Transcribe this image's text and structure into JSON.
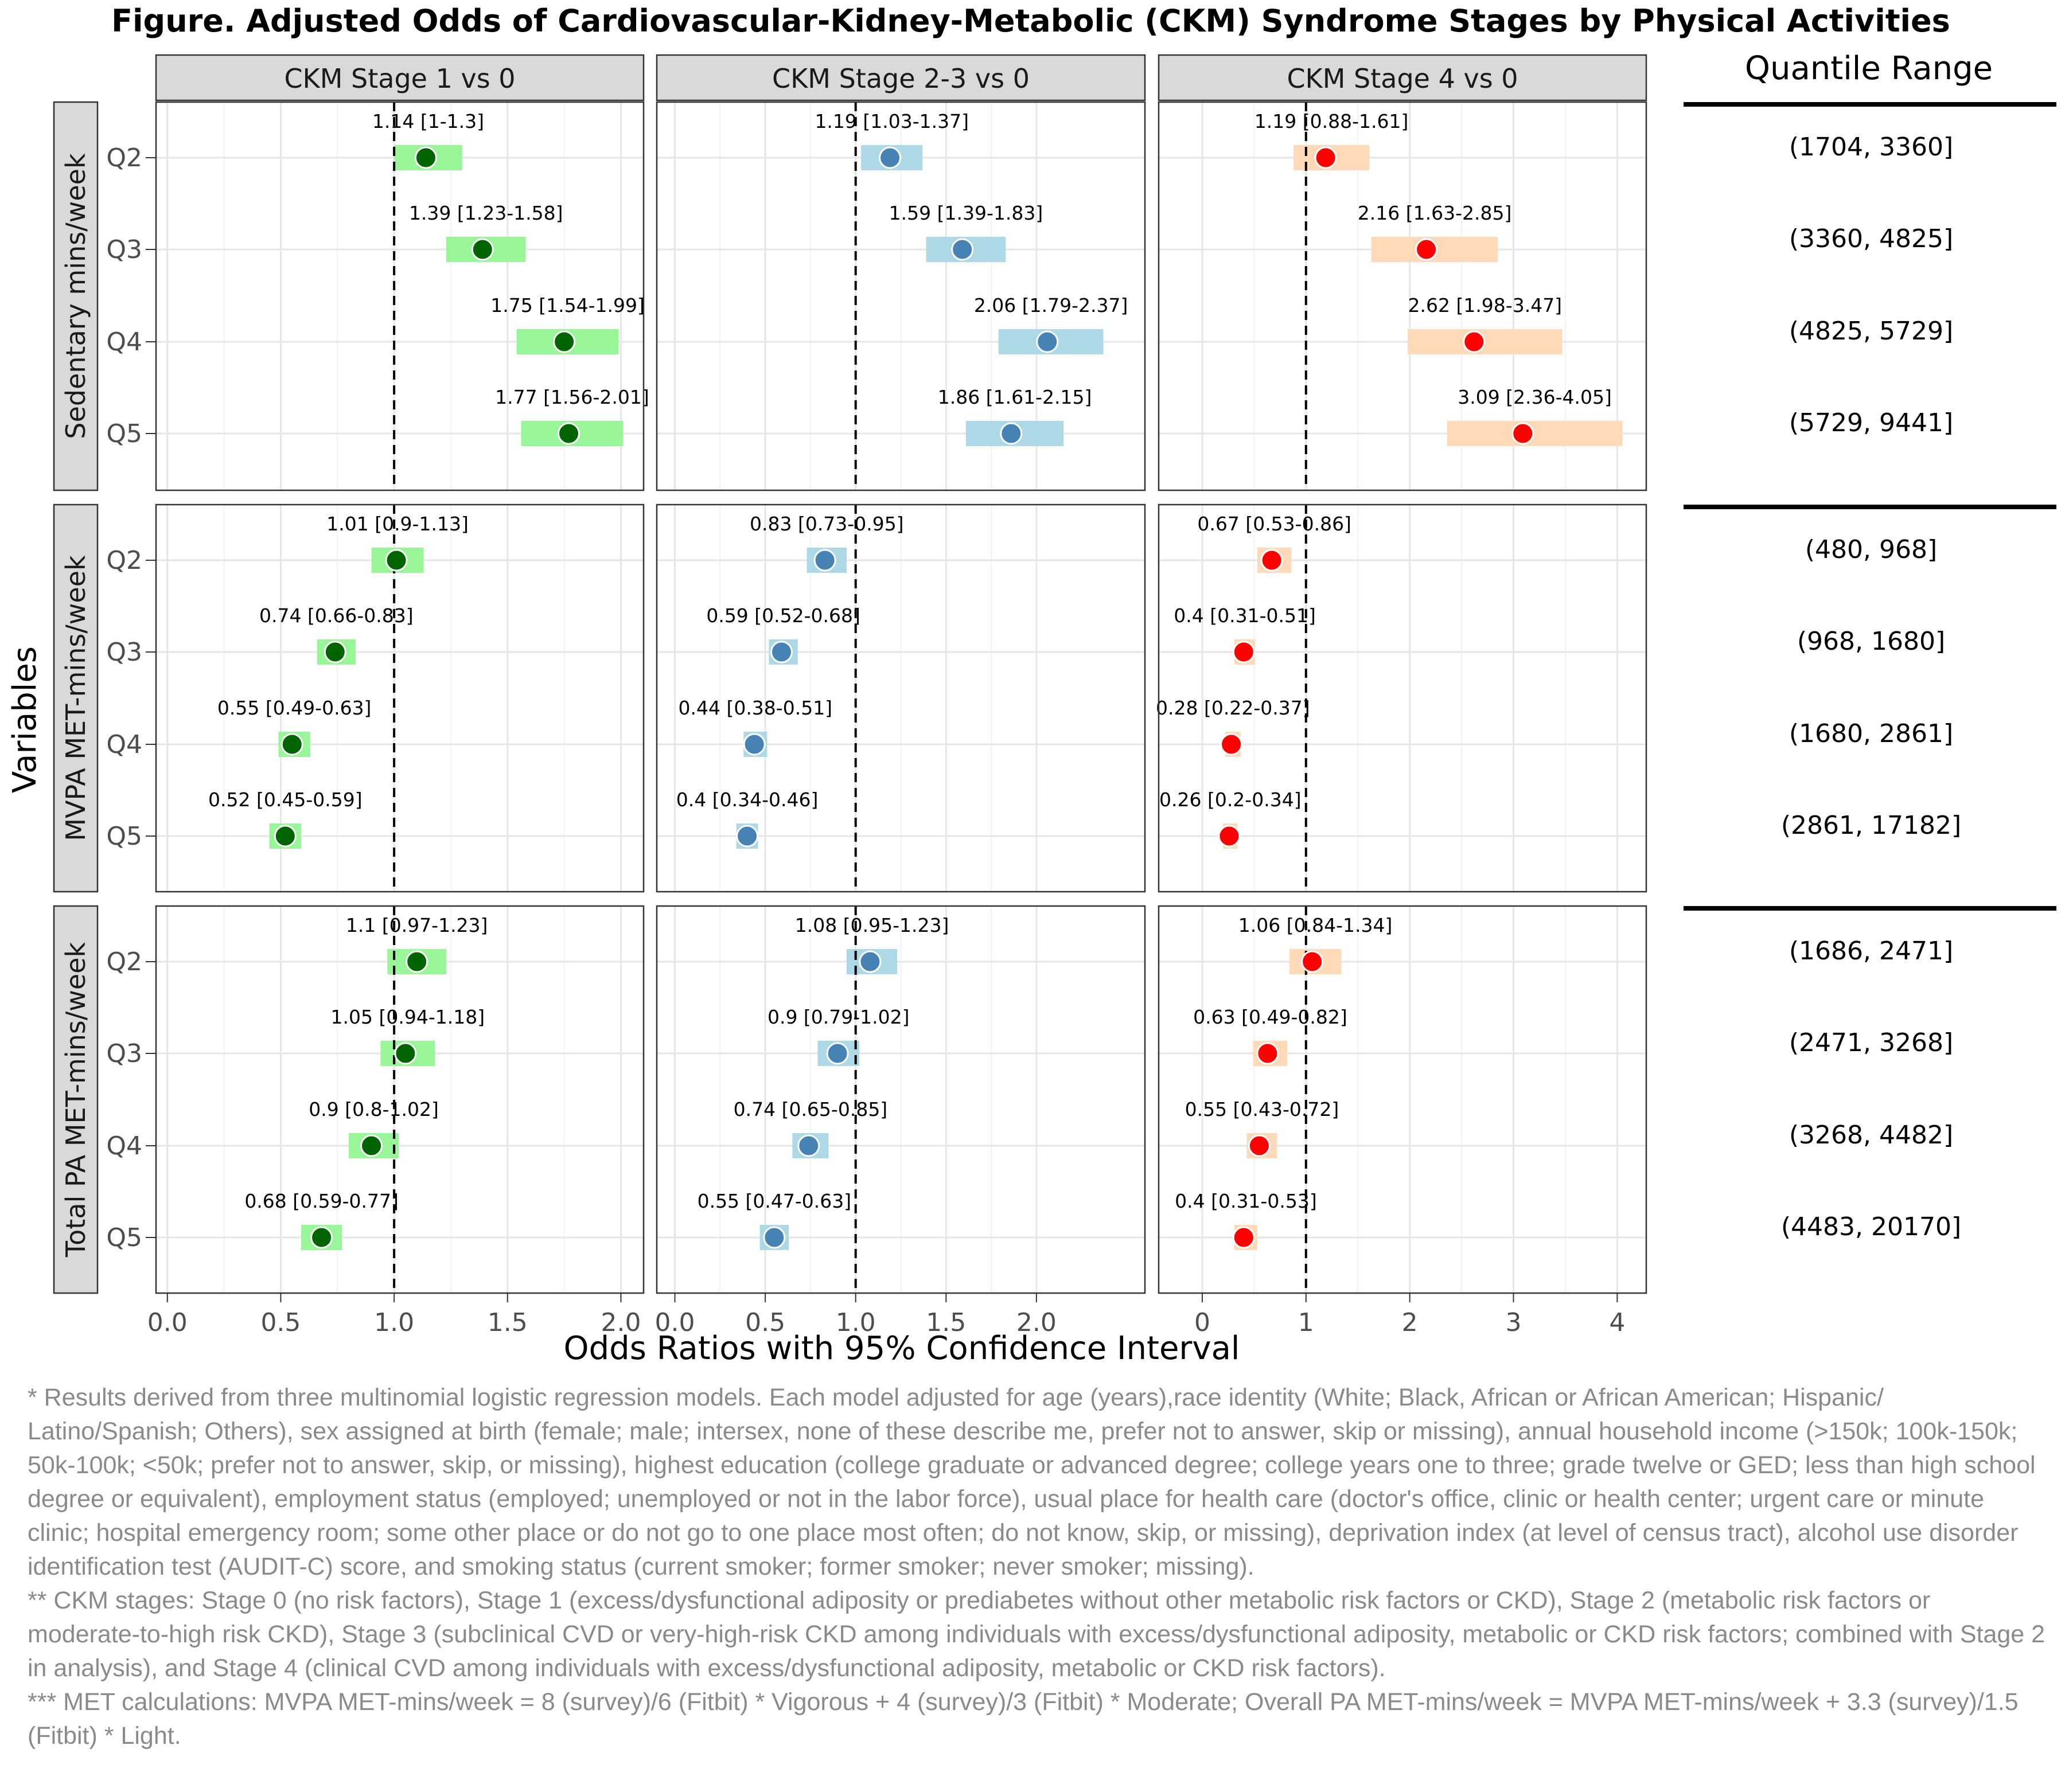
{
  "chart_data": {
    "type": "forest",
    "title": "Figure. Adjusted Odds of Cardiovascular-Kidney-Metabolic (CKM) Syndrome Stages by Physical Activities",
    "xlabel": "Odds Ratios with 95% Confidence Interval",
    "ylabel": "Variables",
    "reference_line": 1,
    "columns": [
      {
        "id": "s1",
        "label": "CKM Stage 1 vs 0",
        "xlim": [
          -0.05,
          2.1
        ],
        "ticks": [
          0,
          0.5,
          1,
          1.5,
          2
        ],
        "tick_labels": [
          "0.0",
          "0.5",
          "1.0",
          "1.5",
          "2.0"
        ],
        "point_color": "#006400",
        "ci_color": "#98f598"
      },
      {
        "id": "s23",
        "label": "CKM Stage 2-3 vs 0",
        "xlim": [
          -0.1,
          2.6
        ],
        "ticks": [
          0,
          0.5,
          1,
          1.5,
          2
        ],
        "tick_labels": [
          "0.0",
          "0.5",
          "1.0",
          "1.5",
          "2.0"
        ],
        "point_color": "#4682b4",
        "ci_color": "#add8e6"
      },
      {
        "id": "s4",
        "label": "CKM Stage 4 vs 0",
        "xlim": [
          -0.42,
          4.28
        ],
        "ticks": [
          0,
          1,
          2,
          3,
          4
        ],
        "tick_labels": [
          "0",
          "1",
          "2",
          "3",
          "4"
        ],
        "point_color": "#ff0000",
        "ci_color": "#ffdab9"
      }
    ],
    "categories": [
      "Q2",
      "Q3",
      "Q4",
      "Q5"
    ],
    "rows": [
      {
        "label": "Sedentary mins/week",
        "quantile_ranges": [
          "(1704, 3360]",
          "(3360, 4825]",
          "(4825, 5729]",
          "(5729, 9441]"
        ],
        "s1": [
          {
            "or": 1.14,
            "lo": 1.0,
            "hi": 1.3,
            "label": "1.14 [1-1.3]"
          },
          {
            "or": 1.39,
            "lo": 1.23,
            "hi": 1.58,
            "label": "1.39 [1.23-1.58]"
          },
          {
            "or": 1.75,
            "lo": 1.54,
            "hi": 1.99,
            "label": "1.75 [1.54-1.99]"
          },
          {
            "or": 1.77,
            "lo": 1.56,
            "hi": 2.01,
            "label": "1.77 [1.56-2.01]"
          }
        ],
        "s23": [
          {
            "or": 1.19,
            "lo": 1.03,
            "hi": 1.37,
            "label": "1.19 [1.03-1.37]"
          },
          {
            "or": 1.59,
            "lo": 1.39,
            "hi": 1.83,
            "label": "1.59 [1.39-1.83]"
          },
          {
            "or": 2.06,
            "lo": 1.79,
            "hi": 2.37,
            "label": "2.06 [1.79-2.37]"
          },
          {
            "or": 1.86,
            "lo": 1.61,
            "hi": 2.15,
            "label": "1.86 [1.61-2.15]"
          }
        ],
        "s4": [
          {
            "or": 1.19,
            "lo": 0.88,
            "hi": 1.61,
            "label": "1.19 [0.88-1.61]"
          },
          {
            "or": 2.16,
            "lo": 1.63,
            "hi": 2.85,
            "label": "2.16 [1.63-2.85]"
          },
          {
            "or": 2.62,
            "lo": 1.98,
            "hi": 3.47,
            "label": "2.62 [1.98-3.47]"
          },
          {
            "or": 3.09,
            "lo": 2.36,
            "hi": 4.05,
            "label": "3.09 [2.36-4.05]"
          }
        ]
      },
      {
        "label": "MVPA MET-mins/week",
        "quantile_ranges": [
          "(480, 968]",
          "(968, 1680]",
          "(1680, 2861]",
          "(2861, 17182]"
        ],
        "s1": [
          {
            "or": 1.01,
            "lo": 0.9,
            "hi": 1.13,
            "label": "1.01 [0.9-1.13]"
          },
          {
            "or": 0.74,
            "lo": 0.66,
            "hi": 0.83,
            "label": "0.74 [0.66-0.83]"
          },
          {
            "or": 0.55,
            "lo": 0.49,
            "hi": 0.63,
            "label": "0.55 [0.49-0.63]"
          },
          {
            "or": 0.52,
            "lo": 0.45,
            "hi": 0.59,
            "label": "0.52 [0.45-0.59]"
          }
        ],
        "s23": [
          {
            "or": 0.83,
            "lo": 0.73,
            "hi": 0.95,
            "label": "0.83 [0.73-0.95]"
          },
          {
            "or": 0.59,
            "lo": 0.52,
            "hi": 0.68,
            "label": "0.59 [0.52-0.68]"
          },
          {
            "or": 0.44,
            "lo": 0.38,
            "hi": 0.51,
            "label": "0.44 [0.38-0.51]"
          },
          {
            "or": 0.4,
            "lo": 0.34,
            "hi": 0.46,
            "label": "0.4 [0.34-0.46]"
          }
        ],
        "s4": [
          {
            "or": 0.67,
            "lo": 0.53,
            "hi": 0.86,
            "label": "0.67 [0.53-0.86]"
          },
          {
            "or": 0.4,
            "lo": 0.31,
            "hi": 0.51,
            "label": "0.4 [0.31-0.51]"
          },
          {
            "or": 0.28,
            "lo": 0.22,
            "hi": 0.37,
            "label": "0.28 [0.22-0.37]"
          },
          {
            "or": 0.26,
            "lo": 0.2,
            "hi": 0.34,
            "label": "0.26 [0.2-0.34]"
          }
        ]
      },
      {
        "label": "Total PA MET-mins/week",
        "quantile_ranges": [
          "(1686, 2471]",
          "(2471, 3268]",
          "(3268, 4482]",
          "(4483, 20170]"
        ],
        "s1": [
          {
            "or": 1.1,
            "lo": 0.97,
            "hi": 1.23,
            "label": "1.1 [0.97-1.23]"
          },
          {
            "or": 1.05,
            "lo": 0.94,
            "hi": 1.18,
            "label": "1.05 [0.94-1.18]"
          },
          {
            "or": 0.9,
            "lo": 0.8,
            "hi": 1.02,
            "label": "0.9 [0.8-1.02]"
          },
          {
            "or": 0.68,
            "lo": 0.59,
            "hi": 0.77,
            "label": "0.68 [0.59-0.77]"
          }
        ],
        "s23": [
          {
            "or": 1.08,
            "lo": 0.95,
            "hi": 1.23,
            "label": "1.08 [0.95-1.23]"
          },
          {
            "or": 0.9,
            "lo": 0.79,
            "hi": 1.02,
            "label": "0.9 [0.79-1.02]"
          },
          {
            "or": 0.74,
            "lo": 0.65,
            "hi": 0.85,
            "label": "0.74 [0.65-0.85]"
          },
          {
            "or": 0.55,
            "lo": 0.47,
            "hi": 0.63,
            "label": "0.55 [0.47-0.63]"
          }
        ],
        "s4": [
          {
            "or": 1.06,
            "lo": 0.84,
            "hi": 1.34,
            "label": "1.06 [0.84-1.34]"
          },
          {
            "or": 0.63,
            "lo": 0.49,
            "hi": 0.82,
            "label": "0.63 [0.49-0.82]"
          },
          {
            "or": 0.55,
            "lo": 0.43,
            "hi": 0.72,
            "label": "0.55 [0.43-0.72]"
          },
          {
            "or": 0.4,
            "lo": 0.31,
            "hi": 0.53,
            "label": "0.4 [0.31-0.53]"
          }
        ]
      }
    ],
    "quantile_header": "Quantile Range"
  },
  "footnotes": [
    "* Results derived from three multinomial logistic regression models. Each model adjusted for age (years),race identity (White; Black, African or African American; Hispanic/ Latino/Spanish; Others), sex assigned at birth (female; male; intersex, none of these describe me, prefer not to answer, skip or missing), annual household income (>150k; 100k-150k; 50k-100k; <50k; prefer not to answer, skip, or missing), highest education (college graduate or advanced degree; college years one to three; grade twelve or GED; less than high school degree or equivalent), employment status (employed; unemployed or not in the labor force), usual place for health care (doctor's office, clinic or health center; urgent care or minute clinic; hospital emergency room;  some other place or do not go to one place most often; do not know, skip, or missing), deprivation index (at level of census tract), alcohol use disorder identification test (AUDIT-C) score, and smoking status (current smoker; former smoker; never smoker; missing).",
    "** CKM stages: Stage 0 (no risk factors), Stage 1 (excess/dysfunctional adiposity or prediabetes without other metabolic risk factors or CKD), Stage 2 (metabolic risk factors or moderate-to-high risk CKD), Stage 3 (subclinical CVD or very-high-risk CKD among individuals with excess/dysfunctional adiposity, metabolic or CKD risk factors; combined with Stage 2 in analysis), and Stage 4 (clinical CVD among individuals with excess/dysfunctional adiposity, metabolic or CKD risk factors).",
    "*** MET calculations: MVPA MET-mins/week = 8 (survey)/6 (Fitbit) * Vigorous + 4 (survey)/3 (Fitbit) * Moderate; Overall PA MET-mins/week = MVPA MET-mins/week + 3.3 (survey)/1.5 (Fitbit) * Light."
  ]
}
